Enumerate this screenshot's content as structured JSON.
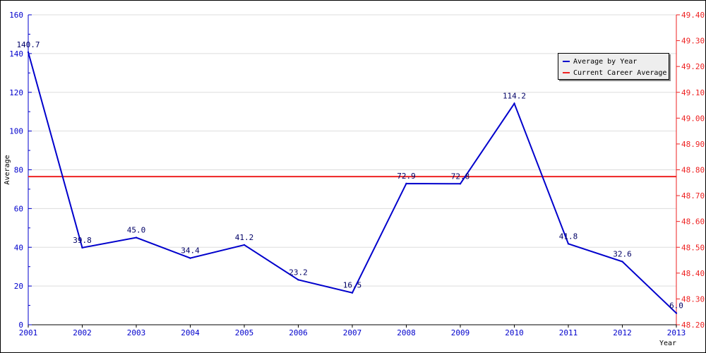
{
  "chart_data": {
    "type": "line",
    "title": "",
    "xlabel": "Year",
    "ylabel": "Average",
    "x": [
      "2001",
      "2002",
      "2003",
      "2004",
      "2005",
      "2006",
      "2007",
      "2008",
      "2009",
      "2010",
      "2011",
      "2012",
      "2013"
    ],
    "series": [
      {
        "name": "Average by Year",
        "color": "#0000cc",
        "axis": "left",
        "values": [
          140.7,
          39.8,
          45.0,
          34.4,
          41.2,
          23.2,
          16.5,
          72.9,
          72.8,
          114.2,
          41.8,
          32.6,
          6.0
        ],
        "labels": [
          "140.7",
          "39.8",
          "45.0",
          "34.4",
          "41.2",
          "23.2",
          "16.5",
          "72.9",
          "72.8",
          "114.2",
          "41.8",
          "32.6",
          "6.0"
        ]
      },
      {
        "name": "Current Career Average",
        "color": "#ee2222",
        "axis": "left",
        "constant": 76.5
      }
    ],
    "ylim": [
      0,
      160
    ],
    "yticks": [
      "0",
      "20",
      "40",
      "60",
      "80",
      "100",
      "120",
      "140",
      "160"
    ],
    "y2lim": [
      48.2,
      49.4
    ],
    "y2ticks": [
      "48.20",
      "48.30",
      "48.40",
      "48.50",
      "48.60",
      "48.70",
      "48.80",
      "48.90",
      "49.00",
      "49.10",
      "49.20",
      "49.30",
      "49.40"
    ],
    "grid": true,
    "legend_position": "top-right",
    "colors": {
      "left_axis": "#0000cc",
      "right_axis": "#ee2222",
      "grid": "#dddddd"
    }
  }
}
